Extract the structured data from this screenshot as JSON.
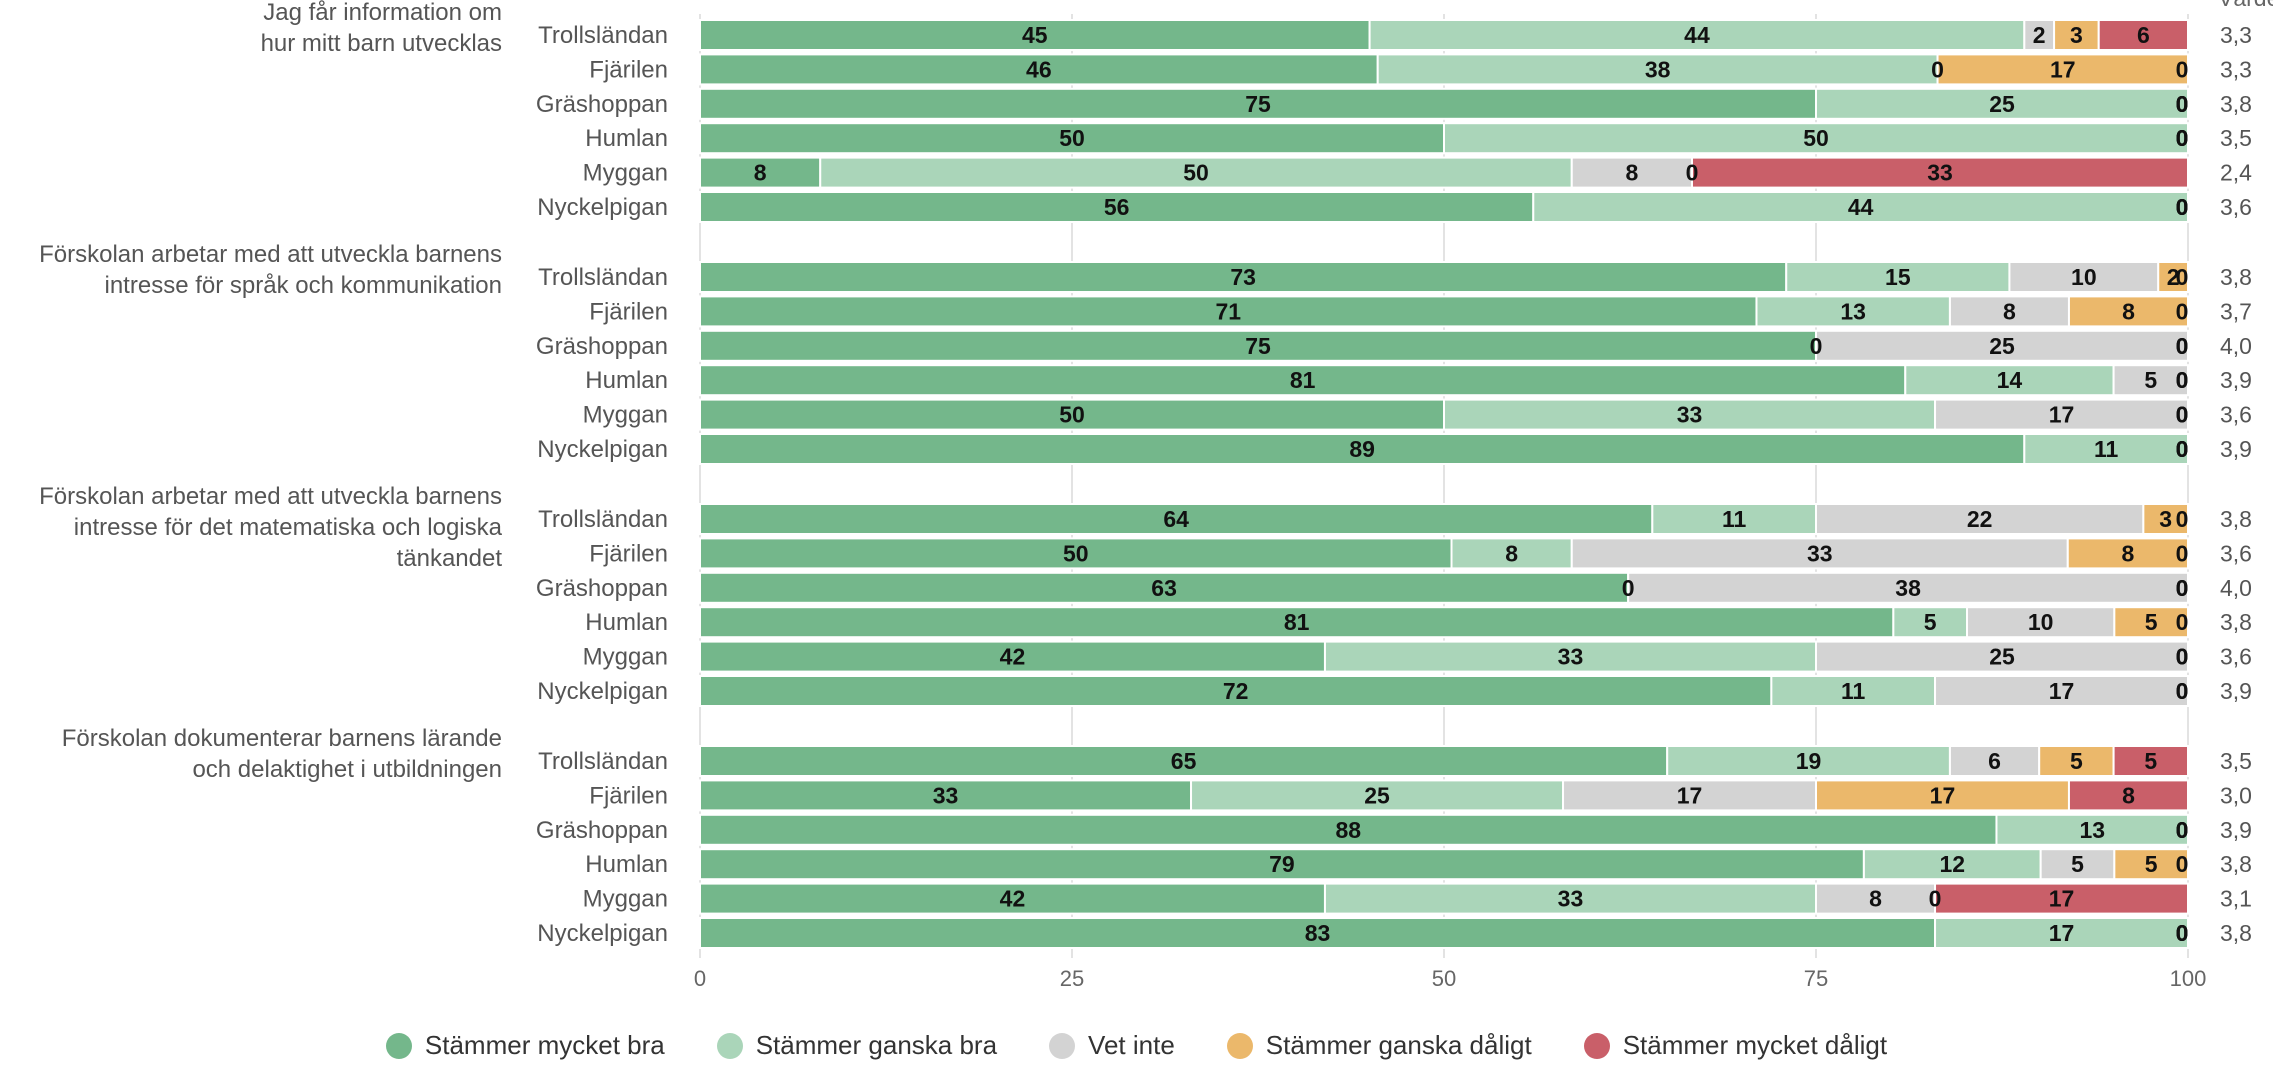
{
  "chart_data": {
    "type": "bar",
    "orientation": "horizontal",
    "stacked": true,
    "stack_mode": "percent",
    "avg_header": "Värde",
    "x_ticks": [
      "0",
      "25",
      "50",
      "75",
      "100"
    ],
    "xlim": [
      0,
      100
    ],
    "grid": true,
    "legend_position": "bottom",
    "series": [
      {
        "name": "Stämmer mycket bra",
        "color": "#74b78b"
      },
      {
        "name": "Stämmer ganska bra",
        "color": "#aad5b9"
      },
      {
        "name": "Vet inte",
        "color": "#d3d3d3"
      },
      {
        "name": "Stämmer ganska dåligt",
        "color": "#ebb86b"
      },
      {
        "name": "Stämmer mycket dåligt",
        "color": "#c95f69"
      }
    ],
    "groups": [
      {
        "title": "Jag får information om hur mitt barn utvecklas",
        "title_lines": [
          "Jag får information om",
          "hur mitt barn utvecklas"
        ],
        "rows": [
          {
            "label": "Trollsländan",
            "values": [
              45,
              44,
              2,
              3,
              6
            ],
            "avg": "3,3"
          },
          {
            "label": "Fjärilen",
            "values": [
              46,
              38,
              0,
              17,
              0
            ],
            "avg": "3,3"
          },
          {
            "label": "Gräshoppan",
            "values": [
              75,
              25,
              0,
              0,
              0
            ],
            "avg": "3,8"
          },
          {
            "label": "Humlan",
            "values": [
              50,
              50,
              0,
              0,
              0
            ],
            "avg": "3,5"
          },
          {
            "label": "Myggan",
            "values": [
              8,
              50,
              8,
              0,
              33
            ],
            "avg": "2,4"
          },
          {
            "label": "Nyckelpigan",
            "values": [
              56,
              44,
              0,
              0,
              0
            ],
            "avg": "3,6"
          }
        ]
      },
      {
        "title": "Förskolan arbetar med att utveckla barnens intresse för språk och kommunikation",
        "title_lines": [
          "Förskolan arbetar med att utveckla barnens",
          "intresse för språk och kommunikation"
        ],
        "rows": [
          {
            "label": "Trollsländan",
            "values": [
              73,
              15,
              10,
              2,
              0
            ],
            "avg": "3,8"
          },
          {
            "label": "Fjärilen",
            "values": [
              71,
              13,
              8,
              8,
              0
            ],
            "avg": "3,7"
          },
          {
            "label": "Gräshoppan",
            "values": [
              75,
              0,
              25,
              0,
              0
            ],
            "avg": "4,0"
          },
          {
            "label": "Humlan",
            "values": [
              81,
              14,
              5,
              0,
              0
            ],
            "avg": "3,9"
          },
          {
            "label": "Myggan",
            "values": [
              50,
              33,
              17,
              0,
              0
            ],
            "avg": "3,6"
          },
          {
            "label": "Nyckelpigan",
            "values": [
              89,
              11,
              0,
              0,
              0
            ],
            "avg": "3,9"
          }
        ]
      },
      {
        "title": "Förskolan arbetar med att utveckla barnens intresse för det matematiska och logiska tänkandet",
        "title_lines": [
          "Förskolan arbetar med att utveckla barnens",
          "intresse för det matematiska och logiska",
          "tänkandet"
        ],
        "rows": [
          {
            "label": "Trollsländan",
            "values": [
              64,
              11,
              22,
              3,
              0
            ],
            "avg": "3,8"
          },
          {
            "label": "Fjärilen",
            "values": [
              50,
              8,
              33,
              8,
              0
            ],
            "avg": "3,6"
          },
          {
            "label": "Gräshoppan",
            "values": [
              63,
              0,
              38,
              0,
              0
            ],
            "avg": "4,0"
          },
          {
            "label": "Humlan",
            "values": [
              81,
              5,
              10,
              5,
              0
            ],
            "avg": "3,8"
          },
          {
            "label": "Myggan",
            "values": [
              42,
              33,
              25,
              0,
              0
            ],
            "avg": "3,6"
          },
          {
            "label": "Nyckelpigan",
            "values": [
              72,
              11,
              17,
              0,
              0
            ],
            "avg": "3,9"
          }
        ]
      },
      {
        "title": "Förskolan dokumenterar barnens lärande och delaktighet i utbildningen",
        "title_lines": [
          "Förskolan dokumenterar barnens lärande",
          "och delaktighet i utbildningen"
        ],
        "rows": [
          {
            "label": "Trollsländan",
            "values": [
              65,
              19,
              6,
              5,
              5
            ],
            "avg": "3,5"
          },
          {
            "label": "Fjärilen",
            "values": [
              33,
              25,
              17,
              17,
              8
            ],
            "avg": "3,0"
          },
          {
            "label": "Gräshoppan",
            "values": [
              88,
              13,
              0,
              0,
              0
            ],
            "avg": "3,9"
          },
          {
            "label": "Humlan",
            "values": [
              79,
              12,
              5,
              5,
              0
            ],
            "avg": "3,8"
          },
          {
            "label": "Myggan",
            "values": [
              42,
              33,
              8,
              0,
              17
            ],
            "avg": "3,1"
          },
          {
            "label": "Nyckelpigan",
            "values": [
              83,
              17,
              0,
              0,
              0
            ],
            "avg": "3,8"
          }
        ]
      }
    ]
  }
}
